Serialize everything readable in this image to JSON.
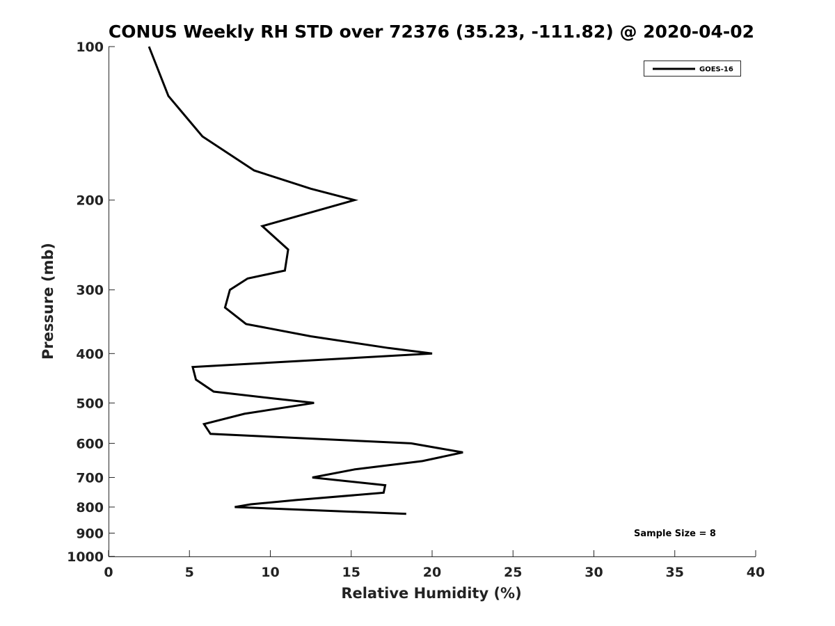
{
  "chart_data": {
    "type": "line",
    "title": "CONUS Weekly RH STD over 72376 (35.23, -111.82) @ 2020-04-02",
    "xlabel": "Relative Humidity (%)",
    "ylabel": "Pressure (mb)",
    "xlim": [
      0,
      40
    ],
    "ylim": [
      1000,
      100
    ],
    "y_scale": "log",
    "y_reversed": true,
    "grid": false,
    "legend_position": "top-right",
    "x_ticks": [
      "0",
      "5",
      "10",
      "15",
      "20",
      "25",
      "30",
      "35",
      "40"
    ],
    "y_ticks": [
      "100",
      "200",
      "300",
      "400",
      "500",
      "600",
      "700",
      "800",
      "900",
      "1000"
    ],
    "series": [
      {
        "name": "GOES-16",
        "color": "#000000",
        "points": [
          {
            "x": 2.5,
            "y": 100
          },
          {
            "x": 3.7,
            "y": 125
          },
          {
            "x": 5.8,
            "y": 150
          },
          {
            "x": 9.0,
            "y": 175
          },
          {
            "x": 12.5,
            "y": 190
          },
          {
            "x": 15.2,
            "y": 200
          },
          {
            "x": 9.5,
            "y": 225
          },
          {
            "x": 11.1,
            "y": 250
          },
          {
            "x": 10.9,
            "y": 275
          },
          {
            "x": 8.6,
            "y": 285
          },
          {
            "x": 7.5,
            "y": 300
          },
          {
            "x": 7.2,
            "y": 325
          },
          {
            "x": 8.5,
            "y": 350
          },
          {
            "x": 12.5,
            "y": 370
          },
          {
            "x": 17.3,
            "y": 390
          },
          {
            "x": 20.0,
            "y": 400
          },
          {
            "x": 5.2,
            "y": 425
          },
          {
            "x": 5.4,
            "y": 450
          },
          {
            "x": 6.5,
            "y": 475
          },
          {
            "x": 10.2,
            "y": 490
          },
          {
            "x": 12.7,
            "y": 500
          },
          {
            "x": 8.4,
            "y": 525
          },
          {
            "x": 5.9,
            "y": 550
          },
          {
            "x": 6.3,
            "y": 575
          },
          {
            "x": 18.7,
            "y": 600
          },
          {
            "x": 21.9,
            "y": 625
          },
          {
            "x": 19.4,
            "y": 650
          },
          {
            "x": 15.2,
            "y": 675
          },
          {
            "x": 12.6,
            "y": 700
          },
          {
            "x": 17.1,
            "y": 725
          },
          {
            "x": 17.0,
            "y": 750
          },
          {
            "x": 11.6,
            "y": 775
          },
          {
            "x": 8.8,
            "y": 790
          },
          {
            "x": 7.8,
            "y": 800
          },
          {
            "x": 18.4,
            "y": 825
          }
        ]
      }
    ],
    "annotations": [
      "Sample Size = 8"
    ]
  }
}
